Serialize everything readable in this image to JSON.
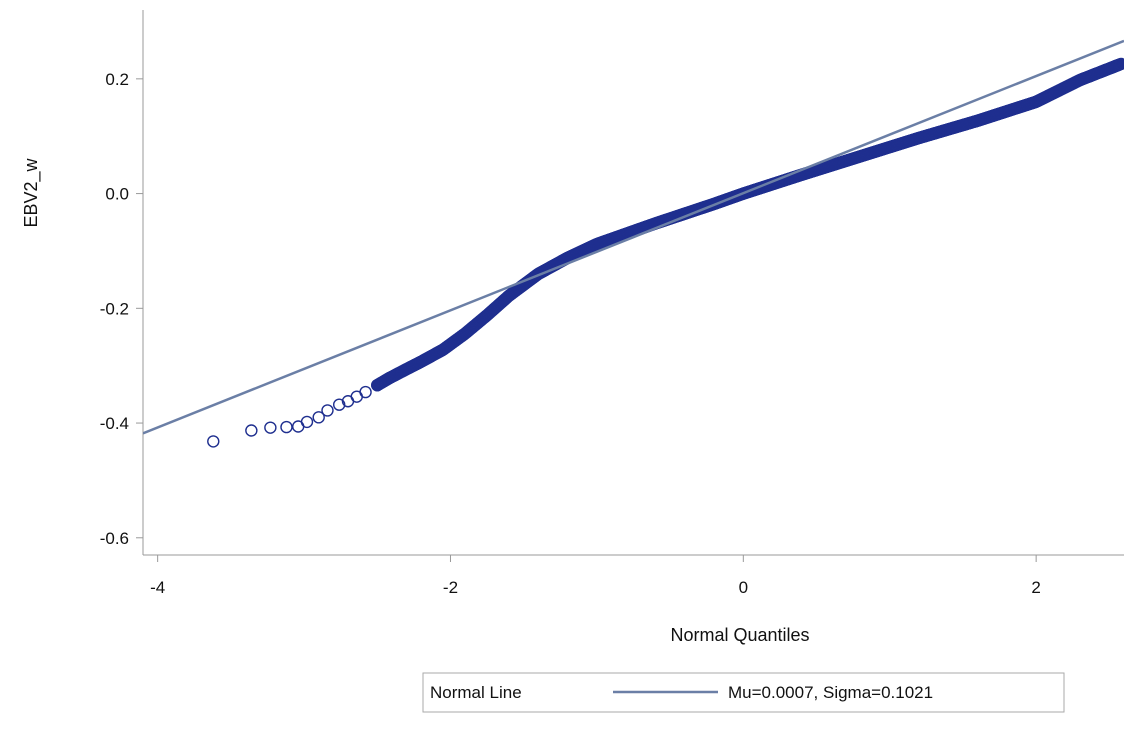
{
  "chart_data": {
    "type": "scatter",
    "title": "",
    "xlabel": "Normal Quantiles",
    "ylabel": "EBV2_w",
    "xlim": [
      -4.1,
      2.6
    ],
    "ylim": [
      -0.63,
      0.32
    ],
    "xticks": [
      -4,
      -2,
      0,
      2
    ],
    "xtick_labels": [
      "-4",
      "-2",
      "0",
      "2"
    ],
    "yticks": [
      -0.6,
      -0.4,
      -0.2,
      0.0,
      0.2
    ],
    "ytick_labels": [
      "-0.6",
      "-0.4",
      "-0.2",
      "0.0",
      "0.2"
    ],
    "grid": false,
    "legend_position": "bottom",
    "colors": {
      "points": "#1f2f8f",
      "normal_line": "#6b7fa6",
      "axis": "#999999"
    },
    "points": {
      "anchors": [
        [
          -3.62,
          -0.432
        ],
        [
          -3.36,
          -0.413
        ],
        [
          -3.23,
          -0.408
        ],
        [
          -3.12,
          -0.407
        ],
        [
          -3.04,
          -0.406
        ],
        [
          -2.98,
          -0.398
        ],
        [
          -2.9,
          -0.39
        ],
        [
          -2.84,
          -0.378
        ],
        [
          -2.76,
          -0.368
        ],
        [
          -2.7,
          -0.362
        ],
        [
          -2.64,
          -0.354
        ],
        [
          -2.58,
          -0.346
        ],
        [
          -2.5,
          -0.334
        ],
        [
          -2.42,
          -0.322
        ],
        [
          -2.3,
          -0.306
        ],
        [
          -2.2,
          -0.293
        ],
        [
          -2.05,
          -0.272
        ],
        [
          -1.9,
          -0.244
        ],
        [
          -1.75,
          -0.212
        ],
        [
          -1.6,
          -0.178
        ],
        [
          -1.4,
          -0.14
        ],
        [
          -1.2,
          -0.112
        ],
        [
          -1.0,
          -0.088
        ],
        [
          -0.6,
          -0.052
        ],
        [
          -0.2,
          -0.018
        ],
        [
          0.0,
          0.0
        ],
        [
          0.4,
          0.033
        ],
        [
          0.8,
          0.065
        ],
        [
          1.2,
          0.097
        ],
        [
          1.6,
          0.127
        ],
        [
          2.0,
          0.16
        ],
        [
          2.3,
          0.198
        ],
        [
          2.45,
          0.213
        ],
        [
          2.58,
          0.226
        ]
      ],
      "count": 800
    },
    "normal_line": {
      "mu": 0.0007,
      "sigma": 0.1021
    },
    "legend": {
      "title": "Normal Line",
      "entry": "Mu=0.0007, Sigma=0.1021"
    }
  }
}
